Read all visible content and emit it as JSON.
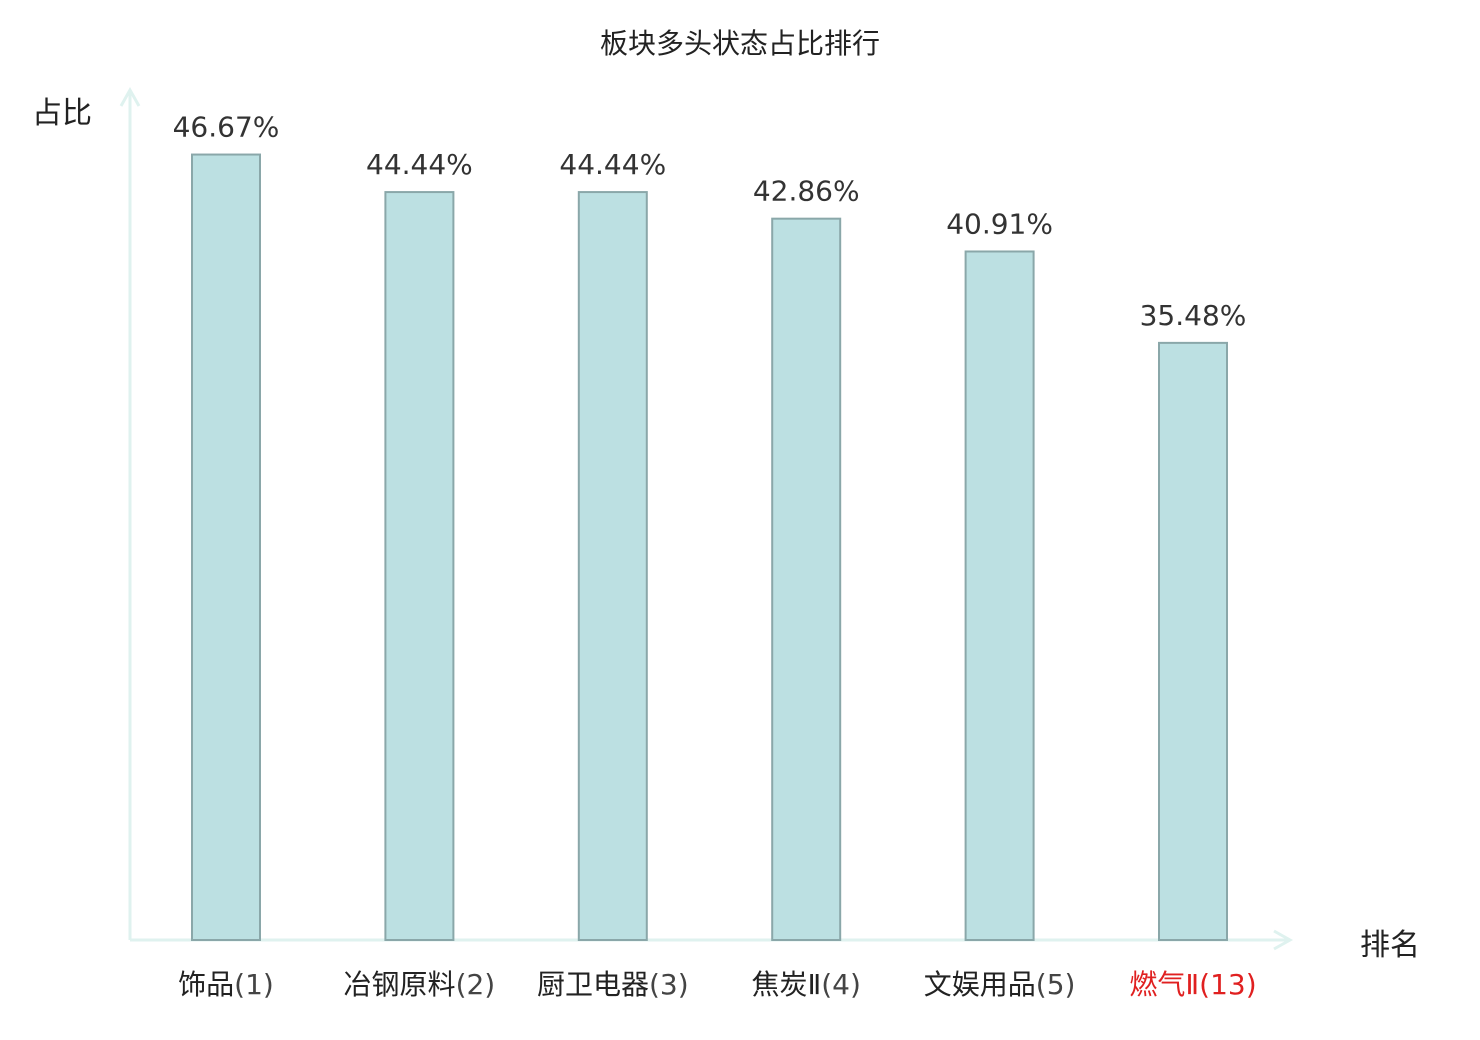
{
  "chart_data": {
    "type": "bar",
    "title": "板块多头状态占比排行",
    "ylabel": "占比",
    "xlabel": "排名",
    "ylim": [
      0,
      50
    ],
    "grid": false,
    "categories": [
      {
        "name": "饰品",
        "rank": "(1)",
        "highlight": false
      },
      {
        "name": "冶钢原料",
        "rank": "(2)",
        "highlight": false
      },
      {
        "name": "厨卫电器",
        "rank": "(3)",
        "highlight": false
      },
      {
        "name": "焦炭Ⅱ",
        "rank": "(4)",
        "highlight": false
      },
      {
        "name": "文娱用品",
        "rank": "(5)",
        "highlight": false
      },
      {
        "name": "燃气Ⅱ",
        "rank": "(13)",
        "highlight": true
      }
    ],
    "values": [
      46.67,
      44.44,
      44.44,
      42.86,
      40.91,
      35.48
    ],
    "value_labels": [
      "46.67%",
      "44.44%",
      "44.44%",
      "42.86%",
      "40.91%",
      "35.48%"
    ],
    "colors": {
      "bar_fill": "#bce0e2",
      "bar_stroke": "#8aa7a9",
      "axis": "#dff2ef",
      "text": "#222222",
      "value_text": "#333333",
      "highlight": "#e02020"
    }
  }
}
